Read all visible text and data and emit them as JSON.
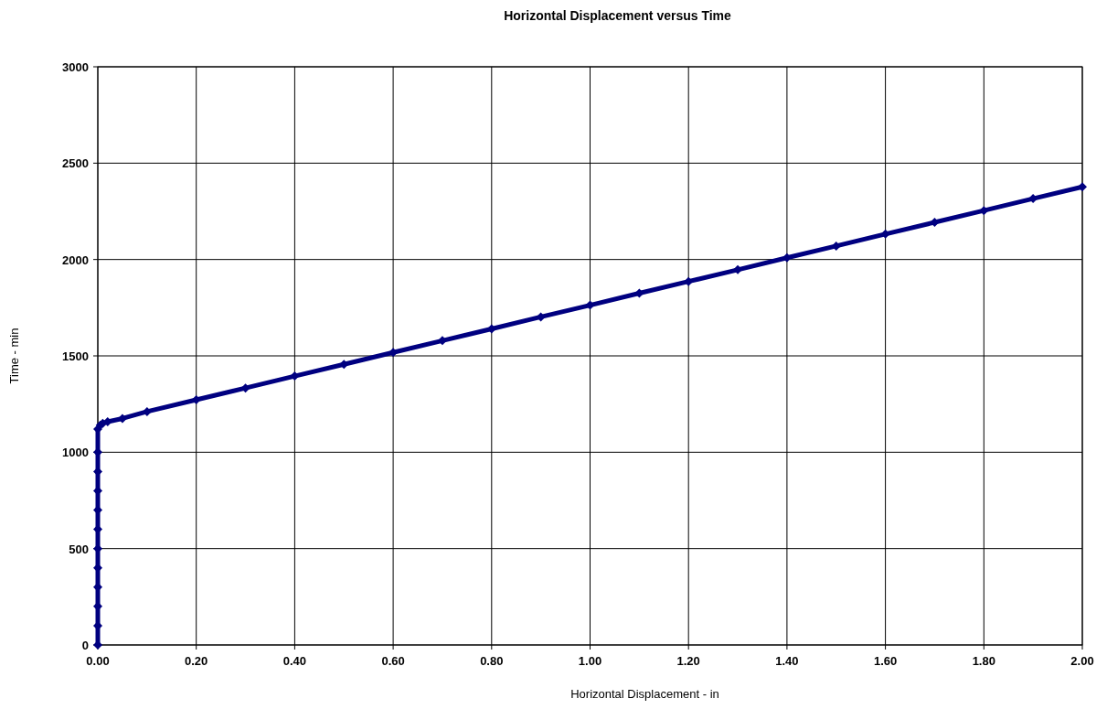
{
  "chart_data": {
    "type": "line",
    "title": "Horizontal Displacement versus Time",
    "xlabel": "Horizontal Displacement - in",
    "ylabel": "Time - min",
    "xlim": [
      0,
      2
    ],
    "xticks": [
      {
        "value": 0,
        "label": "0.00"
      },
      {
        "value": 0.2,
        "label": "0.20"
      },
      {
        "value": 0.4,
        "label": "0.40"
      },
      {
        "value": 0.6,
        "label": "0.60"
      },
      {
        "value": 0.8,
        "label": "0.80"
      },
      {
        "value": 1,
        "label": "1.00"
      },
      {
        "value": 1.2,
        "label": "1.20"
      },
      {
        "value": 1.4,
        "label": "1.40"
      },
      {
        "value": 1.6,
        "label": "1.60"
      },
      {
        "value": 1.8,
        "label": "1.80"
      },
      {
        "value": 2,
        "label": "2.00"
      }
    ],
    "ylim": [
      0,
      3000
    ],
    "yticks": [
      0,
      500,
      1000,
      1500,
      2000,
      2500,
      3000
    ],
    "grid": true,
    "marker": "diamond",
    "line_style": "solid",
    "series": [
      {
        "color": "#000080",
        "x": [
          0,
          0,
          0,
          0,
          0,
          0,
          0,
          0,
          0,
          0,
          0,
          0,
          0.005,
          0.01,
          0.02,
          0.05,
          0.1,
          0.2,
          0.3,
          0.4,
          0.5,
          0.6,
          0.7,
          0.8,
          0.9,
          1,
          1.1,
          1.2,
          1.3,
          1.4,
          1.5,
          1.6,
          1.7,
          1.8,
          1.9,
          2
        ],
        "values": [
          0,
          100,
          200,
          300,
          400,
          500,
          600,
          700,
          800,
          900,
          1000,
          1120,
          1140,
          1150,
          1158,
          1175,
          1211,
          1272,
          1333,
          1395,
          1456,
          1518,
          1579,
          1640,
          1702,
          1763,
          1825,
          1886,
          1947,
          2009,
          2070,
          2132,
          2193,
          2254,
          2316,
          2377
        ]
      }
    ]
  }
}
